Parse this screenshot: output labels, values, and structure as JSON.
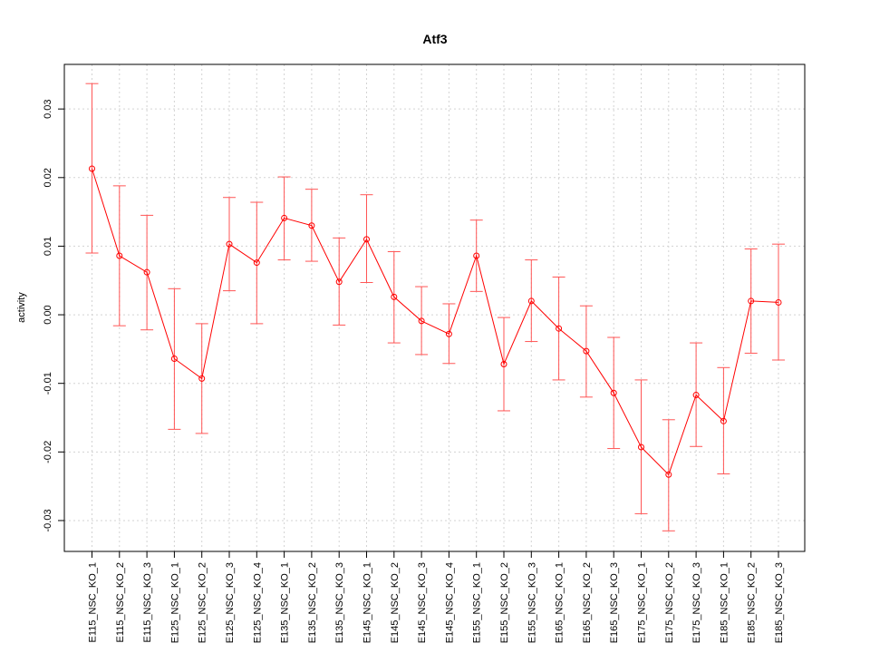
{
  "chart_data": {
    "type": "line",
    "title": "Atf3",
    "xlabel": "",
    "ylabel": "activity",
    "ylim": [
      -0.0345,
      0.0365
    ],
    "yticks": [
      -0.03,
      -0.02,
      -0.01,
      0.0,
      0.01,
      0.02,
      0.03
    ],
    "ytick_labels": [
      "-0.03",
      "-0.02",
      "-0.01",
      "0.00",
      "0.01",
      "0.02",
      "0.03"
    ],
    "grid": true,
    "categories": [
      "E115_NSC_KO_1",
      "E115_NSC_KO_2",
      "E115_NSC_KO_3",
      "E125_NSC_KO_1",
      "E125_NSC_KO_2",
      "E125_NSC_KO_3",
      "E125_NSC_KO_4",
      "E135_NSC_KO_1",
      "E135_NSC_KO_2",
      "E135_NSC_KO_3",
      "E145_NSC_KO_1",
      "E145_NSC_KO_2",
      "E145_NSC_KO_3",
      "E145_NSC_KO_4",
      "E155_NSC_KO_1",
      "E155_NSC_KO_2",
      "E155_NSC_KO_3",
      "E165_NSC_KO_1",
      "E165_NSC_KO_2",
      "E165_NSC_KO_3",
      "E175_NSC_KO_1",
      "E175_NSC_KO_2",
      "E175_NSC_KO_3",
      "E185_NSC_KO_1",
      "E185_NSC_KO_2",
      "E185_NSC_KO_3"
    ],
    "series": [
      {
        "values": [
          0.0213,
          0.0086,
          0.0062,
          -0.0064,
          -0.0093,
          0.0103,
          0.0076,
          0.0141,
          0.013,
          0.0048,
          0.011,
          0.0026,
          -0.0009,
          -0.0028,
          0.0086,
          -0.0072,
          0.002,
          -0.002,
          -0.0053,
          -0.0114,
          -0.0193,
          -0.0233,
          -0.0117,
          -0.0155,
          0.002,
          0.0018
        ],
        "upper": [
          0.0337,
          0.0188,
          0.0145,
          0.0038,
          -0.0013,
          0.0171,
          0.0164,
          0.0201,
          0.0183,
          0.0112,
          0.0175,
          0.0092,
          0.0041,
          0.0016,
          0.0138,
          -0.0004,
          0.008,
          0.0055,
          0.0013,
          -0.0033,
          -0.0095,
          -0.0153,
          -0.0041,
          -0.0077,
          0.0096,
          0.0103
        ],
        "lower": [
          0.009,
          -0.0016,
          -0.0022,
          -0.0167,
          -0.0173,
          0.0035,
          -0.0013,
          0.008,
          0.0078,
          -0.0015,
          0.0047,
          -0.0041,
          -0.0058,
          -0.0071,
          0.0034,
          -0.014,
          -0.0039,
          -0.0095,
          -0.012,
          -0.0195,
          -0.029,
          -0.0315,
          -0.0192,
          -0.0232,
          -0.0056,
          -0.0066
        ],
        "color": "#ff0000",
        "errorbar_color": "#ff5555"
      }
    ]
  }
}
